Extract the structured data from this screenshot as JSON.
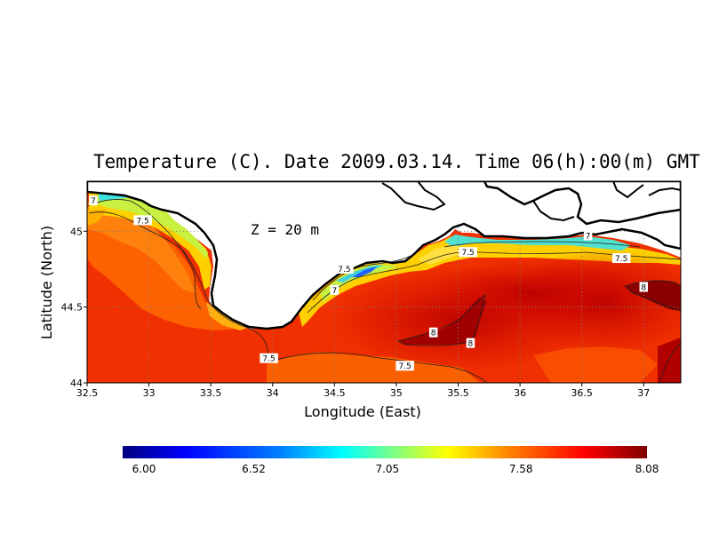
{
  "title": "Temperature (C). Date 2009.03.14. Time 06(h):00(m) GMT",
  "depth_label": "Z = 20 m",
  "map": {
    "region_note": "",
    "x_axis": {
      "label": "Longitude (East)",
      "range": [
        32.5,
        37.3
      ],
      "ticks": [
        "32.5",
        "33",
        "33.5",
        "34",
        "34.5",
        "35",
        "35.5",
        "36",
        "36.5",
        "37"
      ]
    },
    "y_axis": {
      "label": "Latitude (North)",
      "range": [
        44.0,
        45.33
      ],
      "ticks": [
        "44",
        "44.5",
        "45"
      ]
    },
    "grid": "dotted",
    "contour_labels": [
      {
        "text": "7",
        "lon": 32.55,
        "lat": 45.2
      },
      {
        "text": "7.5",
        "lon": 32.95,
        "lat": 45.07
      },
      {
        "text": "7",
        "lon": 34.5,
        "lat": 44.61
      },
      {
        "text": "7.5",
        "lon": 34.58,
        "lat": 44.75
      },
      {
        "text": "7.5",
        "lon": 33.97,
        "lat": 44.16
      },
      {
        "text": "7.5",
        "lon": 35.07,
        "lat": 44.11
      },
      {
        "text": "8",
        "lon": 35.3,
        "lat": 44.33
      },
      {
        "text": "8",
        "lon": 35.6,
        "lat": 44.26
      },
      {
        "text": "7.5",
        "lon": 35.58,
        "lat": 44.86
      },
      {
        "text": "7",
        "lon": 36.55,
        "lat": 44.97
      },
      {
        "text": "7.5",
        "lon": 36.82,
        "lat": 44.82
      },
      {
        "text": "8",
        "lon": 37.0,
        "lat": 44.63
      }
    ]
  },
  "colorbar": {
    "min": 6.0,
    "max": 8.08,
    "labels": [
      "6.00",
      "6.52",
      "7.05",
      "7.58",
      "8.08"
    ],
    "colors": [
      "#00007f",
      "#0000ff",
      "#0080ff",
      "#00ffff",
      "#80ff80",
      "#ffff00",
      "#ff8000",
      "#ff0000",
      "#7f0000"
    ]
  }
}
